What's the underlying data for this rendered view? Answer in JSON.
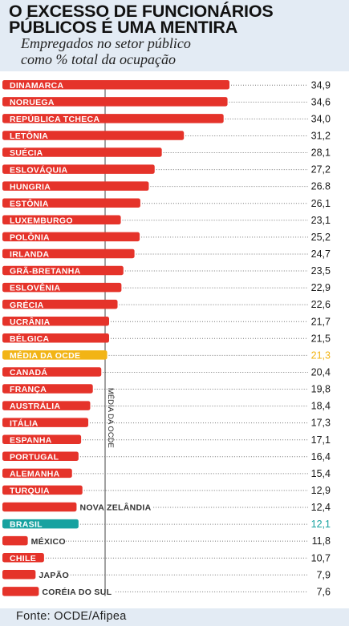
{
  "header": {
    "title_line1": "O EXCESSO DE FUNCIONÁRIOS",
    "title_line2": "PÚBLICOS É UMA MENTIRA",
    "subtitle_line1": "Empregados no setor público",
    "subtitle_line2": "como % total da ocupação"
  },
  "footer": {
    "source": "Fonte: OCDE/Afipea"
  },
  "colors": {
    "bar": "#e5332a",
    "highlight_average": "#f2b415",
    "highlight_brazil": "#17a2a0",
    "text": "#1a1a1a",
    "header_bg": "#e3ebf4"
  },
  "chart_data": {
    "type": "bar",
    "orientation": "horizontal",
    "reference_line_label": "MÉDIA DA OCDE",
    "reference_line_value": 21.3,
    "categories": [
      "DINAMARCA",
      "NORUEGA",
      "REPÚBLICA TCHECA",
      "LETÔNIA",
      "SUÉCIA",
      "ESLOVÁQUIA",
      "HUNGRIA",
      "ESTÔNIA",
      "LUXEMBURGO",
      "POLÔNIA",
      "IRLANDA",
      "GRÃ-BRETANHA",
      "ESLOVÊNIA",
      "GRÉCIA",
      "UCRÂNIA",
      "BÉLGICA",
      "MÉDIA DA OCDE",
      "CANADÁ",
      "FRANÇA",
      "AUSTRÁLIA",
      "ITÁLIA",
      "ESPANHA",
      "PORTUGAL",
      "ALEMANHA",
      "TURQUIA",
      "NOVA ZELÂNDIA",
      "BRASIL",
      "MÉXICO",
      "CHILE",
      "JAPÃO",
      "CORÉIA DO SUL"
    ],
    "values": [
      34.9,
      34.6,
      34.0,
      31.2,
      28.1,
      27.2,
      26.8,
      26.1,
      23.1,
      25.2,
      24.7,
      23.5,
      22.9,
      22.6,
      21.7,
      21.5,
      21.3,
      20.4,
      19.8,
      18.4,
      17.3,
      17.1,
      16.4,
      15.4,
      12.9,
      12.4,
      12.1,
      11.8,
      10.7,
      7.9,
      7.6
    ],
    "value_labels": [
      "34,9",
      "34,6",
      "34,0",
      "31,2",
      "28,1",
      "27,2",
      "26.8",
      "26,1",
      "23,1",
      "25,2",
      "24,7",
      "23,5",
      "22,9",
      "22,6",
      "21,7",
      "21,5",
      "21,3",
      "20,4",
      "19,8",
      "18,4",
      "17,3",
      "17,1",
      "16,4",
      "15,4",
      "12,9",
      "12,4",
      "12,1",
      "11,8",
      "10,7",
      "7,9",
      "7,6"
    ],
    "bar_lengths": [
      34.9,
      34.6,
      34.0,
      27.9,
      24.5,
      23.4,
      22.5,
      21.2,
      18.2,
      21.1,
      20.3,
      18.6,
      18.3,
      17.7,
      16.4,
      16.4,
      16.1,
      15.2,
      13.9,
      13.5,
      13.2,
      12.1,
      11.7,
      10.7,
      12.3,
      11.4,
      11.7,
      3.9,
      6.4,
      5.1,
      5.6
    ],
    "row_styles": [
      "bar",
      "bar",
      "bar",
      "bar",
      "bar",
      "bar",
      "bar",
      "bar",
      "bar",
      "bar",
      "bar",
      "bar",
      "bar",
      "bar",
      "bar",
      "bar",
      "average",
      "bar",
      "bar",
      "bar",
      "bar",
      "bar",
      "bar",
      "bar",
      "bar",
      "bar",
      "brazil",
      "bar",
      "bar",
      "bar",
      "bar"
    ],
    "label_outside": [
      false,
      false,
      false,
      false,
      false,
      false,
      false,
      false,
      false,
      false,
      false,
      false,
      false,
      false,
      false,
      false,
      false,
      false,
      false,
      false,
      false,
      false,
      false,
      false,
      false,
      true,
      false,
      true,
      false,
      true,
      true
    ],
    "xlim": [
      0,
      34.9
    ],
    "grid": false,
    "legend": "none"
  }
}
